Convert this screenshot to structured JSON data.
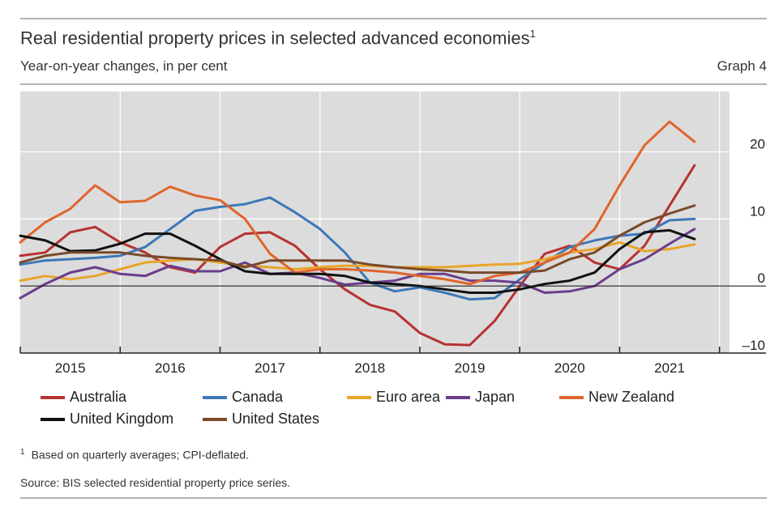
{
  "header": {
    "title": "Real residential property prices in selected advanced economies",
    "title_footnote_mark": "1",
    "subtitle": "Year-on-year changes, in per cent",
    "graph_number": "Graph 4"
  },
  "footer": {
    "footnote_mark": "1",
    "footnote": "Based on quarterly averages; CPI-deflated.",
    "source": "Source: BIS selected residential property price series."
  },
  "chart_data": {
    "type": "line",
    "x_start": 2014.5,
    "x_end": 2021.6,
    "ylim": [
      -10,
      29
    ],
    "yticks": [
      20,
      10,
      0,
      -10
    ],
    "ytick_labels": [
      "20",
      "10",
      "0",
      "–10"
    ],
    "year_ticks": [
      2014.5,
      2015.5,
      2016.5,
      2017.5,
      2018.5,
      2019.5,
      2020.5,
      2021.5
    ],
    "year_labels": [
      {
        "x": 2015,
        "label": "2015"
      },
      {
        "x": 2016,
        "label": "2016"
      },
      {
        "x": 2017,
        "label": "2017"
      },
      {
        "x": 2018,
        "label": "2018"
      },
      {
        "x": 2019,
        "label": "2019"
      },
      {
        "x": 2020,
        "label": "2020"
      },
      {
        "x": 2021,
        "label": "2021"
      }
    ],
    "x": [
      2014.5,
      2014.75,
      2015.0,
      2015.25,
      2015.5,
      2015.75,
      2016.0,
      2016.25,
      2016.5,
      2016.75,
      2017.0,
      2017.25,
      2017.5,
      2017.75,
      2018.0,
      2018.25,
      2018.5,
      2018.75,
      2019.0,
      2019.25,
      2019.5,
      2019.75,
      2020.0,
      2020.25,
      2020.5,
      2020.75,
      2021.0,
      2021.25
    ],
    "series": [
      {
        "name": "Australia",
        "color": "#b83232",
        "values": [
          4.5,
          5.0,
          8.0,
          8.8,
          6.5,
          5.0,
          2.8,
          2.0,
          5.8,
          7.8,
          8.0,
          6.0,
          2.5,
          -0.5,
          -2.8,
          -3.8,
          -7.0,
          -8.7,
          -8.8,
          -5.2,
          0.0,
          4.8,
          6.0,
          3.5,
          2.5,
          6.0,
          12.0,
          18.0
        ]
      },
      {
        "name": "Canada",
        "color": "#3d78b8",
        "values": [
          3.2,
          3.8,
          4.0,
          4.2,
          4.5,
          5.8,
          8.5,
          11.2,
          11.8,
          12.2,
          13.2,
          11.0,
          8.5,
          5.0,
          0.5,
          -0.8,
          -0.2,
          -1.0,
          -2.0,
          -1.8,
          1.0,
          3.5,
          5.8,
          6.8,
          7.5,
          7.8,
          9.8,
          10.0
        ]
      },
      {
        "name": "Euro area",
        "color": "#e8a52a",
        "values": [
          0.8,
          1.5,
          1.0,
          1.5,
          2.5,
          3.5,
          3.8,
          4.0,
          3.5,
          3.0,
          2.8,
          2.5,
          2.8,
          3.0,
          3.0,
          2.8,
          2.8,
          2.8,
          3.0,
          3.2,
          3.3,
          4.0,
          5.0,
          5.5,
          6.5,
          5.2,
          5.5,
          6.2
        ]
      },
      {
        "name": "Japan",
        "color": "#6b3d8c",
        "values": [
          -1.8,
          0.3,
          2.0,
          2.8,
          1.8,
          1.5,
          3.0,
          2.2,
          2.2,
          3.5,
          1.8,
          2.0,
          1.2,
          0.2,
          0.5,
          0.8,
          1.8,
          1.8,
          0.8,
          0.8,
          0.5,
          -1.0,
          -0.8,
          0.0,
          2.5,
          4.0,
          6.3,
          8.5
        ]
      },
      {
        "name": "New Zealand",
        "color": "#e0642c",
        "values": [
          6.5,
          9.5,
          11.5,
          15.0,
          12.5,
          12.7,
          14.8,
          13.5,
          12.8,
          10.0,
          4.8,
          2.0,
          2.5,
          2.5,
          2.3,
          2.0,
          1.5,
          1.0,
          0.3,
          1.5,
          2.0,
          3.5,
          5.0,
          8.5,
          15.0,
          21.0,
          24.5,
          21.5
        ]
      },
      {
        "name": "United Kingdom",
        "color": "#111111",
        "values": [
          7.5,
          6.8,
          5.2,
          5.3,
          6.3,
          7.8,
          7.8,
          6.0,
          4.0,
          2.2,
          1.8,
          1.8,
          1.8,
          1.5,
          0.5,
          0.3,
          0.0,
          -0.5,
          -1.0,
          -1.0,
          -0.5,
          0.3,
          0.8,
          2.0,
          5.5,
          8.0,
          8.3,
          7.0
        ]
      },
      {
        "name": "United States",
        "color": "#7a4a2a",
        "values": [
          3.5,
          4.5,
          5.0,
          5.0,
          5.0,
          4.5,
          4.2,
          4.0,
          3.8,
          2.8,
          3.8,
          3.8,
          3.8,
          3.8,
          3.2,
          2.8,
          2.5,
          2.3,
          2.0,
          2.0,
          2.0,
          2.3,
          4.0,
          5.0,
          7.5,
          9.5,
          10.8,
          12.0
        ]
      }
    ],
    "legend_position": "bottom"
  }
}
